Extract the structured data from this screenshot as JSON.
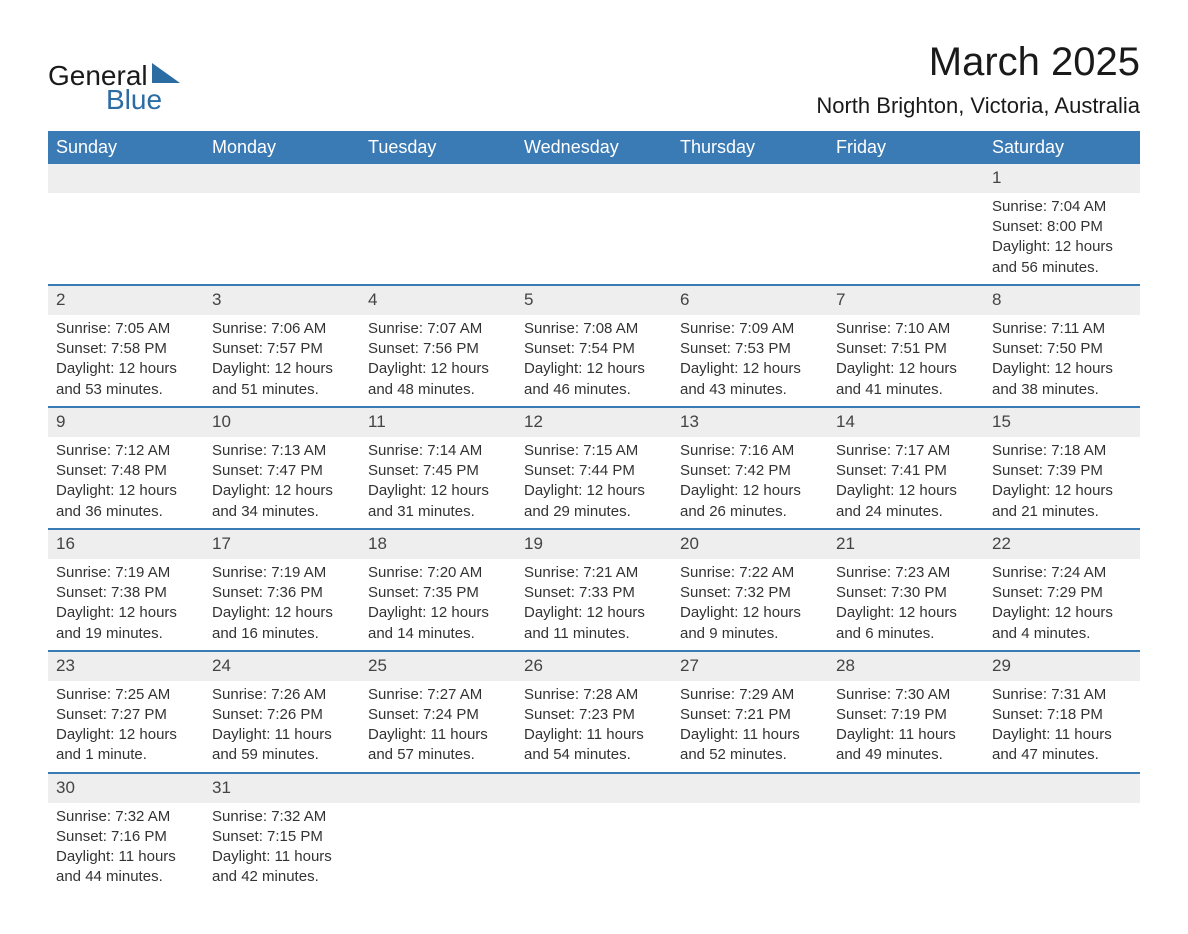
{
  "brand": {
    "general": "General",
    "blue": "Blue",
    "accent_color": "#2b6ca3"
  },
  "title": "March 2025",
  "subtitle": "North Brighton, Victoria, Australia",
  "colors": {
    "header_bg": "#3a7ab5",
    "header_text": "#ffffff",
    "daynum_bg": "#eeeeee",
    "body_bg": "#ffffff",
    "text": "#333333",
    "border": "#3a7ab5"
  },
  "day_labels": [
    "Sunday",
    "Monday",
    "Tuesday",
    "Wednesday",
    "Thursday",
    "Friday",
    "Saturday"
  ],
  "weeks": [
    [
      null,
      null,
      null,
      null,
      null,
      null,
      {
        "n": "1",
        "sunrise": "Sunrise: 7:04 AM",
        "sunset": "Sunset: 8:00 PM",
        "daylight": "Daylight: 12 hours and 56 minutes."
      }
    ],
    [
      {
        "n": "2",
        "sunrise": "Sunrise: 7:05 AM",
        "sunset": "Sunset: 7:58 PM",
        "daylight": "Daylight: 12 hours and 53 minutes."
      },
      {
        "n": "3",
        "sunrise": "Sunrise: 7:06 AM",
        "sunset": "Sunset: 7:57 PM",
        "daylight": "Daylight: 12 hours and 51 minutes."
      },
      {
        "n": "4",
        "sunrise": "Sunrise: 7:07 AM",
        "sunset": "Sunset: 7:56 PM",
        "daylight": "Daylight: 12 hours and 48 minutes."
      },
      {
        "n": "5",
        "sunrise": "Sunrise: 7:08 AM",
        "sunset": "Sunset: 7:54 PM",
        "daylight": "Daylight: 12 hours and 46 minutes."
      },
      {
        "n": "6",
        "sunrise": "Sunrise: 7:09 AM",
        "sunset": "Sunset: 7:53 PM",
        "daylight": "Daylight: 12 hours and 43 minutes."
      },
      {
        "n": "7",
        "sunrise": "Sunrise: 7:10 AM",
        "sunset": "Sunset: 7:51 PM",
        "daylight": "Daylight: 12 hours and 41 minutes."
      },
      {
        "n": "8",
        "sunrise": "Sunrise: 7:11 AM",
        "sunset": "Sunset: 7:50 PM",
        "daylight": "Daylight: 12 hours and 38 minutes."
      }
    ],
    [
      {
        "n": "9",
        "sunrise": "Sunrise: 7:12 AM",
        "sunset": "Sunset: 7:48 PM",
        "daylight": "Daylight: 12 hours and 36 minutes."
      },
      {
        "n": "10",
        "sunrise": "Sunrise: 7:13 AM",
        "sunset": "Sunset: 7:47 PM",
        "daylight": "Daylight: 12 hours and 34 minutes."
      },
      {
        "n": "11",
        "sunrise": "Sunrise: 7:14 AM",
        "sunset": "Sunset: 7:45 PM",
        "daylight": "Daylight: 12 hours and 31 minutes."
      },
      {
        "n": "12",
        "sunrise": "Sunrise: 7:15 AM",
        "sunset": "Sunset: 7:44 PM",
        "daylight": "Daylight: 12 hours and 29 minutes."
      },
      {
        "n": "13",
        "sunrise": "Sunrise: 7:16 AM",
        "sunset": "Sunset: 7:42 PM",
        "daylight": "Daylight: 12 hours and 26 minutes."
      },
      {
        "n": "14",
        "sunrise": "Sunrise: 7:17 AM",
        "sunset": "Sunset: 7:41 PM",
        "daylight": "Daylight: 12 hours and 24 minutes."
      },
      {
        "n": "15",
        "sunrise": "Sunrise: 7:18 AM",
        "sunset": "Sunset: 7:39 PM",
        "daylight": "Daylight: 12 hours and 21 minutes."
      }
    ],
    [
      {
        "n": "16",
        "sunrise": "Sunrise: 7:19 AM",
        "sunset": "Sunset: 7:38 PM",
        "daylight": "Daylight: 12 hours and 19 minutes."
      },
      {
        "n": "17",
        "sunrise": "Sunrise: 7:19 AM",
        "sunset": "Sunset: 7:36 PM",
        "daylight": "Daylight: 12 hours and 16 minutes."
      },
      {
        "n": "18",
        "sunrise": "Sunrise: 7:20 AM",
        "sunset": "Sunset: 7:35 PM",
        "daylight": "Daylight: 12 hours and 14 minutes."
      },
      {
        "n": "19",
        "sunrise": "Sunrise: 7:21 AM",
        "sunset": "Sunset: 7:33 PM",
        "daylight": "Daylight: 12 hours and 11 minutes."
      },
      {
        "n": "20",
        "sunrise": "Sunrise: 7:22 AM",
        "sunset": "Sunset: 7:32 PM",
        "daylight": "Daylight: 12 hours and 9 minutes."
      },
      {
        "n": "21",
        "sunrise": "Sunrise: 7:23 AM",
        "sunset": "Sunset: 7:30 PM",
        "daylight": "Daylight: 12 hours and 6 minutes."
      },
      {
        "n": "22",
        "sunrise": "Sunrise: 7:24 AM",
        "sunset": "Sunset: 7:29 PM",
        "daylight": "Daylight: 12 hours and 4 minutes."
      }
    ],
    [
      {
        "n": "23",
        "sunrise": "Sunrise: 7:25 AM",
        "sunset": "Sunset: 7:27 PM",
        "daylight": "Daylight: 12 hours and 1 minute."
      },
      {
        "n": "24",
        "sunrise": "Sunrise: 7:26 AM",
        "sunset": "Sunset: 7:26 PM",
        "daylight": "Daylight: 11 hours and 59 minutes."
      },
      {
        "n": "25",
        "sunrise": "Sunrise: 7:27 AM",
        "sunset": "Sunset: 7:24 PM",
        "daylight": "Daylight: 11 hours and 57 minutes."
      },
      {
        "n": "26",
        "sunrise": "Sunrise: 7:28 AM",
        "sunset": "Sunset: 7:23 PM",
        "daylight": "Daylight: 11 hours and 54 minutes."
      },
      {
        "n": "27",
        "sunrise": "Sunrise: 7:29 AM",
        "sunset": "Sunset: 7:21 PM",
        "daylight": "Daylight: 11 hours and 52 minutes."
      },
      {
        "n": "28",
        "sunrise": "Sunrise: 7:30 AM",
        "sunset": "Sunset: 7:19 PM",
        "daylight": "Daylight: 11 hours and 49 minutes."
      },
      {
        "n": "29",
        "sunrise": "Sunrise: 7:31 AM",
        "sunset": "Sunset: 7:18 PM",
        "daylight": "Daylight: 11 hours and 47 minutes."
      }
    ],
    [
      {
        "n": "30",
        "sunrise": "Sunrise: 7:32 AM",
        "sunset": "Sunset: 7:16 PM",
        "daylight": "Daylight: 11 hours and 44 minutes."
      },
      {
        "n": "31",
        "sunrise": "Sunrise: 7:32 AM",
        "sunset": "Sunset: 7:15 PM",
        "daylight": "Daylight: 11 hours and 42 minutes."
      },
      null,
      null,
      null,
      null,
      null
    ]
  ]
}
